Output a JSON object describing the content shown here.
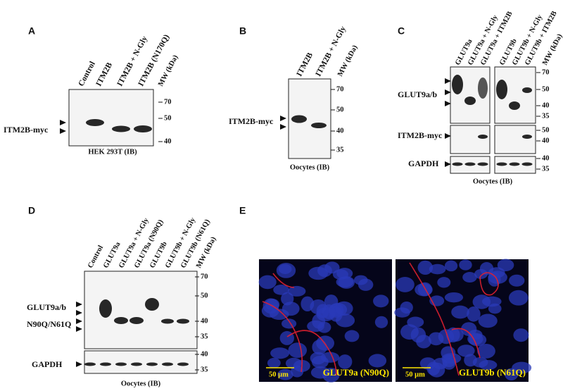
{
  "panels": [
    {
      "label": "A",
      "lanes": [
        "Control",
        "ITM2B",
        "ITM2B + N-Gly",
        "ITM2B (N170Q)"
      ],
      "mw_header": "MW (kDa)",
      "blots": [
        {
          "labels": [
            "ITM2B-myc"
          ],
          "markers": [
            "70",
            "50",
            "40"
          ]
        }
      ],
      "caption": "HEK 293T (IB)"
    },
    {
      "label": "B",
      "lanes": [
        "ITM2B",
        "ITM2B + N-Gly"
      ],
      "mw_header": "MW (kDa)",
      "blots": [
        {
          "labels": [
            "ITM2B-myc"
          ],
          "markers": [
            "70",
            "50",
            "40",
            "35"
          ]
        }
      ],
      "caption": "Oocytes (IB)"
    },
    {
      "label": "C",
      "lanes": [
        "GLUT9a",
        "GLUT9a + N-Gly",
        "GLUT9a + ITM2B",
        "GLUT9b",
        "GLUT9b + N-Gly",
        "GLUT9b + ITM2B"
      ],
      "mw_header": "MW (kDa)",
      "blots": [
        {
          "labels": [
            "GLUT9a/b"
          ],
          "markers": [
            "70",
            "50",
            "40",
            "35"
          ]
        },
        {
          "labels": [
            "ITM2B-myc"
          ],
          "markers": [
            "50",
            "40"
          ]
        },
        {
          "labels": [
            "GAPDH"
          ],
          "markers": [
            "40",
            "35"
          ]
        }
      ],
      "caption": "Oocytes (IB)"
    },
    {
      "label": "D",
      "lanes": [
        "Control",
        "GLUT9a",
        "GLUT9a + N-Gly",
        "GLUT9a (N90Q)",
        "GLUT9b",
        "GLUT9b + N-Gly",
        "GLUT9b (N61Q)"
      ],
      "mw_header": "MW (kDa)",
      "blots": [
        {
          "labels": [
            "GLUT9a/b",
            "N90Q/N61Q"
          ],
          "markers": [
            "70",
            "50",
            "40",
            "35"
          ]
        },
        {
          "labels": [
            "GAPDH"
          ],
          "markers": [
            "40",
            "35"
          ]
        }
      ],
      "caption": "Oocytes (IB)"
    },
    {
      "label": "E",
      "images": [
        {
          "scale": "50 μm",
          "title": "GLUT9a (N90Q)"
        },
        {
          "scale": "50 μm",
          "title": "GLUT9b (N61Q)"
        }
      ]
    }
  ]
}
